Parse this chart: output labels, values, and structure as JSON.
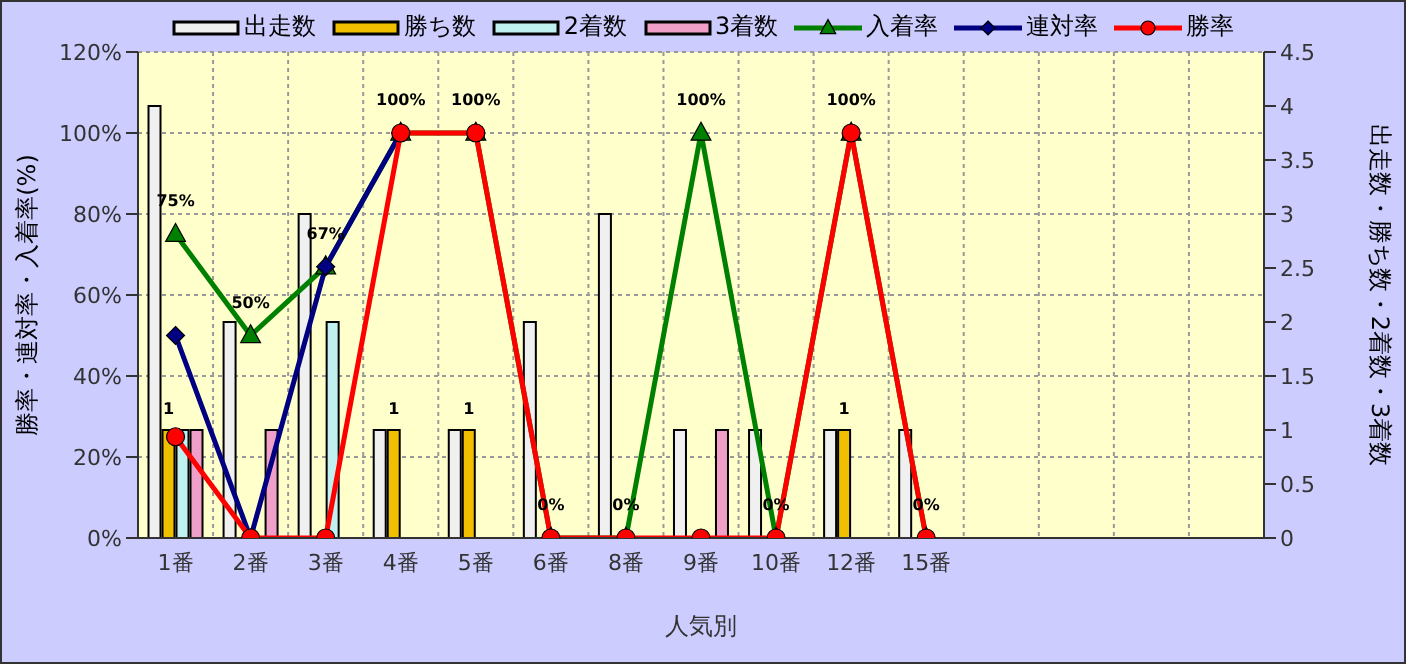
{
  "chart_data": {
    "type": "bar",
    "xlabel": "人気別",
    "ylabel": "勝率・連対率・入着率(%)",
    "y2label": "出走数・勝ち数・2着数・3着数",
    "categories": [
      "1番",
      "2番",
      "3番",
      "4番",
      "5番",
      "6番",
      "8番",
      "9番",
      "10番",
      "12番",
      "15番",
      null,
      null,
      null,
      null
    ],
    "series": [
      {
        "name": "出走数",
        "axis": "y2",
        "color": "#f0f0f0",
        "values": [
          4,
          2,
          3,
          1,
          1,
          2,
          3,
          1,
          1,
          1,
          1,
          null,
          null,
          null,
          null
        ]
      },
      {
        "name": "勝ち数",
        "axis": "y2",
        "color": "#f0c000",
        "values": [
          1,
          0,
          0,
          1,
          1,
          0,
          0,
          0,
          0,
          1,
          0,
          null,
          null,
          null,
          null
        ],
        "value_labels": [
          "1",
          null,
          null,
          "1",
          "1",
          null,
          null,
          null,
          null,
          "1",
          null,
          null,
          null,
          null,
          null
        ]
      },
      {
        "name": "2着数",
        "axis": "y2",
        "color": "#c0f0f0",
        "values": [
          1,
          0,
          2,
          0,
          0,
          0,
          0,
          0,
          0,
          0,
          0,
          null,
          null,
          null,
          null
        ]
      },
      {
        "name": "3着数",
        "axis": "y2",
        "color": "#f0a0c8",
        "values": [
          1,
          1,
          0,
          0,
          0,
          0,
          0,
          1,
          0,
          0,
          0,
          null,
          null,
          null,
          null
        ]
      },
      {
        "name": "入着率",
        "type": "line",
        "color": "#008000",
        "marker": "triangle",
        "values": [
          75,
          50,
          67,
          100,
          100,
          0,
          0,
          100,
          0,
          100,
          0,
          null,
          null,
          null,
          null
        ],
        "value_labels": [
          "75%",
          "50%",
          "67%",
          "100%",
          "100%",
          "0%",
          "0%",
          "100%",
          "0%",
          "100%",
          "0%",
          null,
          null,
          null,
          null
        ]
      },
      {
        "name": "連対率",
        "type": "line",
        "color": "#000080",
        "marker": "diamond",
        "values": [
          50,
          0,
          67,
          100,
          null,
          null,
          null,
          null,
          null,
          null,
          null,
          null,
          null,
          null,
          null
        ]
      },
      {
        "name": "勝率",
        "type": "line",
        "color": "#ff0000",
        "marker": "circle",
        "values": [
          25,
          0,
          0,
          100,
          100,
          0,
          0,
          0,
          0,
          100,
          0,
          null,
          null,
          null,
          null
        ]
      }
    ],
    "ylim": [
      0,
      120
    ],
    "yticks": [
      {
        "value": 0,
        "label": "0%"
      },
      {
        "value": 20,
        "label": "20%"
      },
      {
        "value": 40,
        "label": "40%"
      },
      {
        "value": 60,
        "label": "60%"
      },
      {
        "value": 80,
        "label": "80%"
      },
      {
        "value": 100,
        "label": "100%"
      },
      {
        "value": 120,
        "label": "120%"
      }
    ],
    "y2lim": [
      0,
      4.5
    ],
    "y2ticks": [
      0,
      0.5,
      1,
      1.5,
      2,
      2.5,
      3,
      3.5,
      4,
      4.5
    ],
    "grid": true,
    "legend": "top"
  }
}
